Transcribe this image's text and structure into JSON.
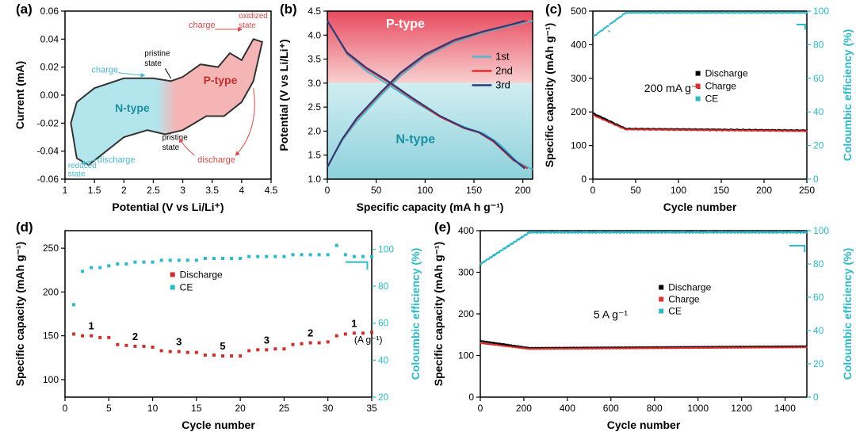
{
  "panel_a": {
    "label": "(a)",
    "type": "line",
    "xlabel": "Potential (V vs Li/Li⁺)",
    "ylabel": "Current (mA)",
    "xlim": [
      1.0,
      4.5
    ],
    "ylim": [
      -0.06,
      0.06
    ],
    "xticks": [
      1.0,
      1.5,
      2.0,
      2.5,
      3.0,
      3.5,
      4.0,
      4.5
    ],
    "yticks": [
      -0.06,
      -0.04,
      -0.02,
      0.0,
      0.02,
      0.04,
      0.06
    ],
    "label_fontsize": 14,
    "tick_fontsize": 12,
    "line_color": "#333333",
    "line_width": 2,
    "ntype_fill": "#b3e5ec",
    "ptype_fill": "#f5b5b5",
    "ntype_text": "N-type",
    "ptype_text": "P-type",
    "annotations": {
      "charge1": {
        "text": "charge",
        "color": "#4db8d0"
      },
      "discharge1": {
        "text": "discharge",
        "color": "#4db8d0"
      },
      "reduced": {
        "text": "reduced\nstate",
        "color": "#4db8d0"
      },
      "pristine1": {
        "text": "pristine\nstate",
        "color": "#000000"
      },
      "pristine2": {
        "text": "pristine\nstate",
        "color": "#000000"
      },
      "charge2": {
        "text": "charge",
        "color": "#d84a4a"
      },
      "discharge2": {
        "text": "discharge",
        "color": "#d84a4a"
      },
      "oxidized": {
        "text": "oxidized\nstate",
        "color": "#d84a4a"
      }
    },
    "cv_upper": [
      [
        1.2,
        -0.005
      ],
      [
        1.5,
        0.005
      ],
      [
        2.0,
        0.012
      ],
      [
        2.5,
        0.012
      ],
      [
        2.8,
        0.01
      ],
      [
        3.0,
        0.013
      ],
      [
        3.3,
        0.022
      ],
      [
        3.6,
        0.02
      ],
      [
        3.8,
        0.03
      ],
      [
        4.0,
        0.025
      ],
      [
        4.2,
        0.04
      ],
      [
        4.35,
        0.038
      ]
    ],
    "cv_lower": [
      [
        4.35,
        0.038
      ],
      [
        4.2,
        0.01
      ],
      [
        4.0,
        -0.005
      ],
      [
        3.7,
        -0.015
      ],
      [
        3.4,
        -0.015
      ],
      [
        3.2,
        -0.02
      ],
      [
        3.0,
        -0.025
      ],
      [
        2.7,
        -0.028
      ],
      [
        2.4,
        -0.025
      ],
      [
        2.0,
        -0.03
      ],
      [
        1.7,
        -0.04
      ],
      [
        1.4,
        -0.05
      ],
      [
        1.2,
        -0.045
      ],
      [
        1.1,
        -0.02
      ],
      [
        1.2,
        -0.005
      ]
    ]
  },
  "panel_b": {
    "label": "(b)",
    "type": "line",
    "xlabel": "Specific capacity (mA h g⁻¹)",
    "ylabel": "Potential (V vs Li/Li⁺)",
    "xlim": [
      0,
      210
    ],
    "ylim": [
      1.0,
      4.5
    ],
    "xticks": [
      0,
      50,
      100,
      150,
      200
    ],
    "yticks": [
      1.0,
      1.5,
      2.0,
      2.5,
      3.0,
      3.5,
      4.0,
      4.5
    ],
    "label_fontsize": 14,
    "tick_fontsize": 12,
    "ptype_fill_top": "#e84a5f",
    "ptype_fill_bottom": "#f8d0d0",
    "ntype_fill_top": "#d0eef2",
    "ntype_fill_bottom": "#8ed1db",
    "boundary_y": 3.0,
    "ptype_text": "P-type",
    "ntype_text": "N-type",
    "ptype_text_color": "#ffffff",
    "ntype_text_color": "#1a8fa3",
    "legend": [
      {
        "label": "1st",
        "color": "#4db8d0"
      },
      {
        "label": "2nd",
        "color": "#e03030"
      },
      {
        "label": "3rd",
        "color": "#2a3a7a"
      }
    ],
    "curves": {
      "1st_discharge": [
        [
          0,
          4.3
        ],
        [
          20,
          3.6
        ],
        [
          40,
          3.25
        ],
        [
          60,
          3.0
        ],
        [
          90,
          2.6
        ],
        [
          120,
          2.25
        ],
        [
          145,
          2.05
        ],
        [
          160,
          1.95
        ],
        [
          175,
          1.75
        ],
        [
          195,
          1.35
        ],
        [
          210,
          1.2
        ]
      ],
      "1st_charge": [
        [
          0,
          1.25
        ],
        [
          15,
          1.8
        ],
        [
          30,
          2.2
        ],
        [
          55,
          2.75
        ],
        [
          75,
          3.15
        ],
        [
          100,
          3.55
        ],
        [
          130,
          3.85
        ],
        [
          160,
          4.05
        ],
        [
          190,
          4.2
        ],
        [
          210,
          4.3
        ]
      ],
      "2nd_discharge": [
        [
          0,
          4.3
        ],
        [
          20,
          3.62
        ],
        [
          40,
          3.3
        ],
        [
          60,
          3.05
        ],
        [
          85,
          2.7
        ],
        [
          115,
          2.3
        ],
        [
          140,
          2.06
        ],
        [
          155,
          1.97
        ],
        [
          170,
          1.78
        ],
        [
          190,
          1.4
        ],
        [
          205,
          1.22
        ]
      ],
      "2nd_charge": [
        [
          0,
          1.25
        ],
        [
          15,
          1.82
        ],
        [
          30,
          2.25
        ],
        [
          55,
          2.8
        ],
        [
          75,
          3.2
        ],
        [
          100,
          3.58
        ],
        [
          130,
          3.88
        ],
        [
          160,
          4.07
        ],
        [
          190,
          4.22
        ],
        [
          205,
          4.3
        ]
      ],
      "3rd_discharge": [
        [
          0,
          4.3
        ],
        [
          20,
          3.64
        ],
        [
          40,
          3.32
        ],
        [
          60,
          3.07
        ],
        [
          85,
          2.72
        ],
        [
          115,
          2.32
        ],
        [
          140,
          2.07
        ],
        [
          155,
          1.98
        ],
        [
          170,
          1.8
        ],
        [
          190,
          1.42
        ],
        [
          202,
          1.22
        ]
      ],
      "3rd_charge": [
        [
          0,
          1.25
        ],
        [
          15,
          1.83
        ],
        [
          30,
          2.27
        ],
        [
          55,
          2.82
        ],
        [
          75,
          3.22
        ],
        [
          100,
          3.6
        ],
        [
          130,
          3.9
        ],
        [
          160,
          4.08
        ],
        [
          188,
          4.22
        ],
        [
          202,
          4.3
        ]
      ]
    }
  },
  "panel_c": {
    "label": "(c)",
    "type": "scatter",
    "xlabel": "Cycle number",
    "ylabel": "Specific capacity (mAh g⁻¹)",
    "ylabel2": "Coloumbic efficiency (%)",
    "xlim": [
      0,
      250
    ],
    "ylim": [
      0,
      500
    ],
    "ylim2": [
      0,
      100
    ],
    "xticks": [
      0,
      50,
      100,
      150,
      200,
      250
    ],
    "yticks": [
      0,
      100,
      200,
      300,
      400,
      500
    ],
    "yticks2": [
      0,
      20,
      40,
      60,
      80,
      100
    ],
    "label_fontsize": 14,
    "tick_fontsize": 12,
    "ylabel2_color": "#2fb8c5",
    "condition_text": "200 mA g⁻¹",
    "legend": [
      {
        "label": "Discharge",
        "color": "#000000",
        "marker": "square"
      },
      {
        "label": "Charge",
        "color": "#e03030",
        "marker": "square"
      },
      {
        "label": "CE",
        "color": "#2fb8c5",
        "marker": "square"
      }
    ],
    "discharge": {
      "start": 195,
      "min": 150,
      "end": 145,
      "color": "#000000"
    },
    "charge": {
      "start": 190,
      "min": 148,
      "end": 143,
      "color": "#e03030"
    },
    "ce": {
      "first": 85,
      "steady": 99,
      "color": "#2fb8c5"
    }
  },
  "panel_d": {
    "label": "(d)",
    "type": "scatter",
    "xlabel": "Cycle number",
    "ylabel": "Specific capacity (mAh g⁻¹)",
    "ylabel2": "Coloumbic efficiency (%)",
    "xlim": [
      0,
      35
    ],
    "ylim": [
      80,
      270
    ],
    "ylim2": [
      20,
      110
    ],
    "xticks": [
      0,
      5,
      10,
      15,
      20,
      25,
      30,
      35
    ],
    "yticks": [
      100,
      150,
      200,
      250
    ],
    "yticks2": [
      20,
      40,
      60,
      80,
      100
    ],
    "label_fontsize": 14,
    "tick_fontsize": 12,
    "ylabel2_color": "#2fb8c5",
    "legend": [
      {
        "label": "Discharge",
        "color": "#c93030",
        "marker": "square"
      },
      {
        "label": "CE",
        "color": "#2fb8c5",
        "marker": "square"
      }
    ],
    "rate_unit": "(A g⁻¹)",
    "rate_labels": [
      "1",
      "2",
      "3",
      "5",
      "3",
      "2",
      "1"
    ],
    "rate_points": {
      "1a": [
        152,
        150,
        150,
        148,
        148
      ],
      "2a": [
        140,
        139,
        138,
        138,
        137
      ],
      "3a": [
        133,
        132,
        132,
        131,
        131
      ],
      "5": [
        128,
        128,
        127,
        127,
        127
      ],
      "3b": [
        133,
        134,
        134,
        135,
        135
      ],
      "2b": [
        140,
        141,
        142,
        142,
        143
      ],
      "1b": [
        150,
        152,
        153,
        153,
        154
      ]
    },
    "ce_points": [
      70,
      88,
      90,
      90,
      91,
      92,
      92,
      93,
      93,
      93,
      94,
      94,
      94,
      94,
      94,
      95,
      95,
      95,
      95,
      95,
      96,
      96,
      96,
      96,
      96,
      97,
      97,
      97,
      97,
      97,
      102,
      97,
      96,
      96,
      96
    ],
    "discharge_color": "#c93030",
    "ce_color": "#2fb8c5"
  },
  "panel_e": {
    "label": "(e)",
    "type": "scatter",
    "xlabel": "Cycle number",
    "ylabel": "Specific capacity (mAh g⁻¹)",
    "ylabel2": "Coloumbic efficiency (%)",
    "xlim": [
      0,
      1500
    ],
    "ylim": [
      0,
      400
    ],
    "ylim2": [
      0,
      100
    ],
    "xticks": [
      0,
      200,
      400,
      600,
      800,
      1000,
      1200,
      1400
    ],
    "yticks": [
      0,
      100,
      200,
      300,
      400
    ],
    "yticks2": [
      0,
      20,
      40,
      60,
      80,
      100
    ],
    "label_fontsize": 14,
    "tick_fontsize": 12,
    "ylabel2_color": "#2fb8c5",
    "condition_text": "5 A g⁻¹",
    "legend": [
      {
        "label": "Discharge",
        "color": "#000000",
        "marker": "square"
      },
      {
        "label": "Charge",
        "color": "#e03030",
        "marker": "square"
      },
      {
        "label": "CE",
        "color": "#2fb8c5",
        "marker": "square"
      }
    ],
    "discharge": {
      "start": 135,
      "mid": 118,
      "end": 122,
      "color": "#000000"
    },
    "charge": {
      "start": 130,
      "mid": 116,
      "end": 120,
      "color": "#e03030"
    },
    "ce": {
      "first": 80,
      "steady": 99,
      "color": "#2fb8c5"
    }
  }
}
